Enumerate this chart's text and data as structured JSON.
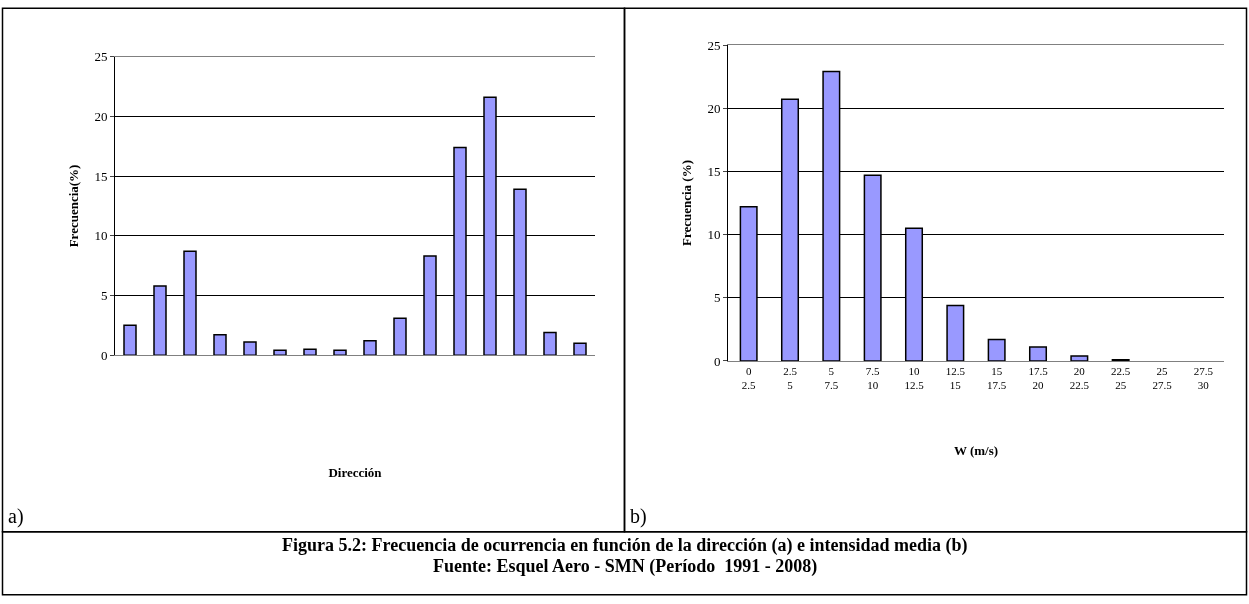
{
  "chart_data": [
    {
      "type": "bar",
      "categories": [
        null,
        null,
        null,
        null,
        null,
        null,
        null,
        null,
        null,
        null,
        null,
        null,
        null,
        null,
        null,
        null
      ],
      "values": [
        2.5,
        5.8,
        8.7,
        1.7,
        1.1,
        0.4,
        0.5,
        0.4,
        1.2,
        3.1,
        8.3,
        17.4,
        21.6,
        13.9,
        1.9,
        1.0
      ],
      "color": "#9999ff",
      "ylim": [
        0,
        25
      ],
      "yticks": [
        0,
        5,
        10,
        15,
        20,
        25
      ],
      "grid": "y",
      "ylabel": "Frecuencia(%)",
      "xlabel": "Dirección",
      "annotations": [
        "a)",
        "Figura 5.2: Frecuencia de ocurrencia en función de la dirección (a) e intensidad media (b)",
        "Fuente: Esquel Aero - SMN (Período  1991 - 2008)"
      ]
    },
    {
      "type": "bar",
      "categories": [
        "0\n2.5",
        "2.5\n5",
        "5\n7.5",
        "7.5\n10",
        "10\n12.5",
        "12.5\n15",
        "15\n17.5",
        "17.5\n20",
        "20\n22.5",
        "22.5\n25",
        "25\n27.5",
        "27.5\n30"
      ],
      "values": [
        12.2,
        20.7,
        22.9,
        14.7,
        10.5,
        4.4,
        1.7,
        1.1,
        0.4,
        0.1,
        0,
        0
      ],
      "color": "#9999ff",
      "ylim": [
        0,
        25
      ],
      "yticks": [
        0,
        5,
        10,
        15,
        20,
        25
      ],
      "grid": "y",
      "ylabel": "Frecuencia (%)",
      "xlabel": "W (m/s)",
      "annotations": [
        "b)"
      ]
    }
  ]
}
